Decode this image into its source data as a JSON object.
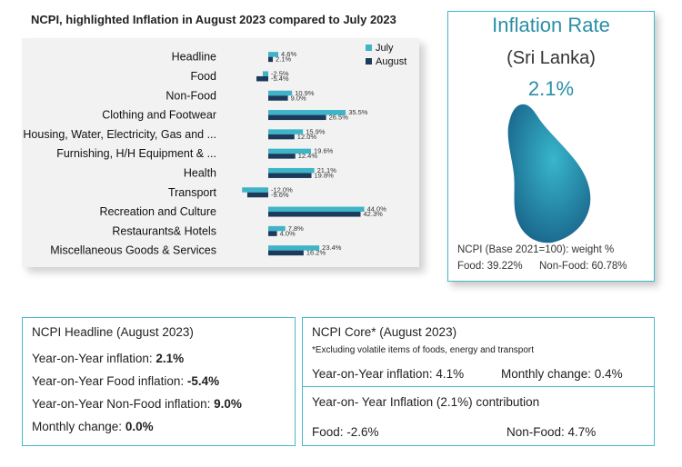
{
  "chart_data": {
    "type": "bar",
    "orientation": "horizontal",
    "title": "NCPI, highlighted Inflation in August 2023 compared to July 2023",
    "categories": [
      "Headline",
      "Food",
      "Non-Food",
      "Clothing and Footwear",
      "Housing, Water, Electricity, Gas and ...",
      "Furnishing, H/H Equipment & ...",
      "Health",
      "Transport",
      "Recreation and Culture",
      "Restaurants& Hotels",
      "Miscellaneous Goods & Services"
    ],
    "series": [
      {
        "name": "July",
        "color": "#3eb4c8",
        "values": [
          4.6,
          -2.5,
          10.9,
          35.5,
          15.9,
          19.6,
          21.1,
          -12.0,
          44.0,
          7.8,
          23.4
        ],
        "labels": [
          "4.6%",
          "-2.5%",
          "10.9%",
          "35.5%",
          "15.9%",
          "19.6%",
          "21.1%",
          "-12.0%",
          "44.0%",
          "7.8%",
          "23.4%"
        ]
      },
      {
        "name": "August",
        "color": "#1c3a5c",
        "values": [
          2.1,
          -5.4,
          9.0,
          26.5,
          12.0,
          12.4,
          19.8,
          -9.6,
          42.3,
          4.0,
          16.2
        ],
        "labels": [
          "2.1%",
          "-5.4%",
          "9.0%",
          "26.5%",
          "12.0%",
          "12.4%",
          "19.8%",
          "-9.6%",
          "42.3%",
          "4.0%",
          "16.2%"
        ]
      }
    ],
    "xlim": [
      -15,
      45
    ],
    "legend": "top-right"
  },
  "inflation_card": {
    "title": "Inflation Rate",
    "country": "(Sri Lanka)",
    "rate": "2.1%",
    "weight_label": "NCPI (Base 2021=100): weight %",
    "food_weight": "Food: 39.22%",
    "nonfood_weight": "Non-Food: 60.78%"
  },
  "headline": {
    "title": "NCPI Headline (August 2023)",
    "rows": [
      {
        "label": "Year-on-Year inflation: ",
        "value": "2.1%"
      },
      {
        "label": "Year-on-Year Food inflation: ",
        "value": "-5.4%"
      },
      {
        "label": "Year-on-Year Non-Food inflation: ",
        "value": "9.0%"
      },
      {
        "label": "Monthly change: ",
        "value": "0.0%"
      }
    ]
  },
  "core": {
    "title": "NCPI Core* (August 2023)",
    "note": "*Excluding volatile items of foods, energy and transport",
    "yoy": "Year-on-Year inflation: 4.1%",
    "monthly": "Monthly change: 0.4%",
    "contrib_title": "Year-on- Year Inflation (2.1%) contribution",
    "food": "Food: -2.6%",
    "nonfood": "Non-Food: 4.7%"
  }
}
